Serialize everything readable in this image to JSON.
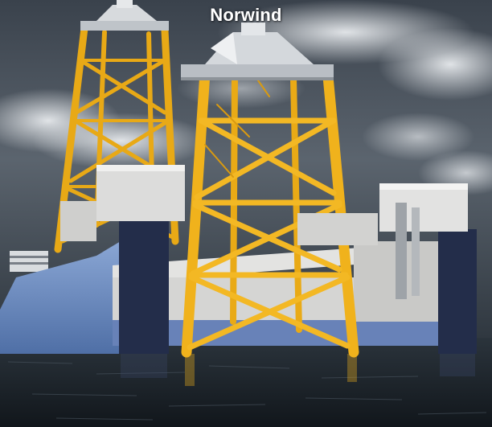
{
  "caption": "Norwind",
  "colors": {
    "sky_dark": "#2b333c",
    "sky_light": "#c9ced4",
    "jacket_yellow": "#f2b21a",
    "hull_blue": "#6d8fc4",
    "column_navy": "#232d4a",
    "deck_grey": "#d8d8d6",
    "sea": "#1c2329"
  }
}
